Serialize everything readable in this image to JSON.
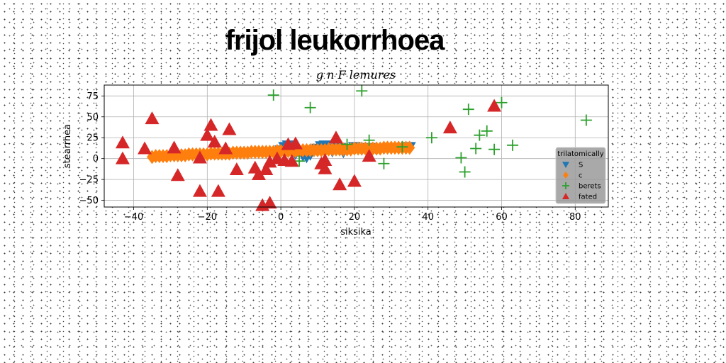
{
  "chart_data": {
    "type": "scatter",
    "title": "frijol leukorrhoea",
    "subtitle": "g n F lemures",
    "xlabel": "siksika",
    "ylabel": "stearrhea",
    "xlim": [
      -48,
      89
    ],
    "ylim": [
      -58,
      88
    ],
    "xticks": [
      -40,
      -20,
      0,
      20,
      40,
      60,
      80
    ],
    "yticks": [
      -50,
      -25,
      0,
      25,
      50,
      75
    ],
    "grid": true,
    "legend": {
      "title": "trilatomically",
      "position": "lower-right"
    },
    "series": [
      {
        "name": "S",
        "marker": "triangle-down",
        "color": "#1f77b4",
        "points": [
          [
            0,
            10
          ],
          [
            1,
            14
          ],
          [
            2,
            16
          ],
          [
            3,
            13
          ],
          [
            4,
            6
          ],
          [
            5,
            8
          ],
          [
            6,
            4
          ],
          [
            7,
            2
          ],
          [
            8,
            5
          ],
          [
            9,
            10
          ],
          [
            10,
            12
          ],
          [
            11,
            15
          ],
          [
            12,
            16
          ],
          [
            13,
            12
          ],
          [
            14,
            9
          ],
          [
            15,
            14
          ],
          [
            16,
            13
          ],
          [
            17,
            8
          ],
          [
            18,
            12
          ],
          [
            19,
            10
          ],
          [
            20,
            14
          ],
          [
            22,
            11
          ],
          [
            24,
            13
          ],
          [
            27,
            12
          ],
          [
            30,
            13
          ],
          [
            33,
            12
          ],
          [
            35,
            14
          ]
        ]
      },
      {
        "name": "c",
        "marker": "diamond",
        "color": "#ff7f0e",
        "points": [
          [
            -35,
            2
          ],
          [
            -34,
            3
          ],
          [
            -33,
            3
          ],
          [
            -32,
            3
          ],
          [
            -31,
            3
          ],
          [
            -30,
            4
          ],
          [
            -29,
            4
          ],
          [
            -28,
            4
          ],
          [
            -27,
            4
          ],
          [
            -26,
            4
          ],
          [
            -25,
            5
          ],
          [
            -24,
            5
          ],
          [
            -23,
            5
          ],
          [
            -22,
            5
          ],
          [
            -21,
            5
          ],
          [
            -20,
            5
          ],
          [
            -19,
            6
          ],
          [
            -18,
            6
          ],
          [
            -17,
            6
          ],
          [
            -16,
            6
          ],
          [
            -15,
            6
          ],
          [
            -14,
            6
          ],
          [
            -13,
            7
          ],
          [
            -12,
            7
          ],
          [
            -11,
            7
          ],
          [
            -10,
            7
          ],
          [
            -9,
            7
          ],
          [
            -8,
            8
          ],
          [
            -7,
            8
          ],
          [
            -6,
            8
          ],
          [
            -5,
            8
          ],
          [
            -4,
            8
          ],
          [
            -3,
            8
          ],
          [
            -2,
            8
          ],
          [
            -1,
            9
          ],
          [
            0,
            9
          ],
          [
            1,
            9
          ],
          [
            2,
            9
          ],
          [
            3,
            9
          ],
          [
            4,
            9
          ],
          [
            5,
            9
          ],
          [
            6,
            10
          ],
          [
            7,
            10
          ],
          [
            8,
            10
          ],
          [
            9,
            10
          ],
          [
            10,
            10
          ],
          [
            11,
            10
          ],
          [
            12,
            10
          ],
          [
            13,
            11
          ],
          [
            14,
            11
          ],
          [
            15,
            11
          ],
          [
            16,
            11
          ],
          [
            17,
            11
          ],
          [
            18,
            11
          ],
          [
            19,
            11
          ],
          [
            20,
            12
          ],
          [
            21,
            12
          ],
          [
            22,
            12
          ],
          [
            23,
            12
          ],
          [
            24,
            12
          ],
          [
            25,
            12
          ],
          [
            26,
            12
          ],
          [
            27,
            12
          ],
          [
            28,
            13
          ],
          [
            29,
            13
          ],
          [
            30,
            13
          ],
          [
            31,
            13
          ],
          [
            32,
            13
          ],
          [
            33,
            13
          ],
          [
            34,
            13
          ],
          [
            35,
            13
          ]
        ]
      },
      {
        "name": "berets",
        "marker": "plus",
        "color": "#2ca02c",
        "points": [
          [
            -2,
            76
          ],
          [
            8,
            61
          ],
          [
            22,
            81
          ],
          [
            18,
            17
          ],
          [
            24,
            22
          ],
          [
            28,
            -6
          ],
          [
            33,
            14
          ],
          [
            5,
            -3
          ],
          [
            41,
            25
          ],
          [
            49,
            1
          ],
          [
            50,
            -16
          ],
          [
            51,
            59
          ],
          [
            53,
            12
          ],
          [
            54,
            28
          ],
          [
            56,
            33
          ],
          [
            58,
            11
          ],
          [
            60,
            67
          ],
          [
            63,
            16
          ],
          [
            83,
            46
          ]
        ]
      },
      {
        "name": "fated",
        "marker": "triangle-up",
        "color": "#d62728",
        "points": [
          [
            -43,
            19
          ],
          [
            -43,
            0
          ],
          [
            -37,
            12
          ],
          [
            -35,
            48
          ],
          [
            -29,
            13
          ],
          [
            -28,
            -20
          ],
          [
            -22,
            1
          ],
          [
            -22,
            -39
          ],
          [
            -20,
            28
          ],
          [
            -19,
            40
          ],
          [
            -18,
            20
          ],
          [
            -17,
            -39
          ],
          [
            -15,
            12
          ],
          [
            -14,
            35
          ],
          [
            -12,
            -13
          ],
          [
            -7,
            -11
          ],
          [
            -6,
            -19
          ],
          [
            -5,
            -56
          ],
          [
            -4,
            -13
          ],
          [
            -3,
            -4
          ],
          [
            -3,
            -53
          ],
          [
            -1,
            0
          ],
          [
            1,
            -2
          ],
          [
            2,
            17
          ],
          [
            3,
            -3
          ],
          [
            4,
            18
          ],
          [
            11,
            -6
          ],
          [
            12,
            -12
          ],
          [
            12,
            -2
          ],
          [
            15,
            25
          ],
          [
            16,
            -31
          ],
          [
            20,
            -27
          ],
          [
            24,
            3
          ],
          [
            46,
            37
          ],
          [
            58,
            63
          ]
        ]
      }
    ]
  }
}
